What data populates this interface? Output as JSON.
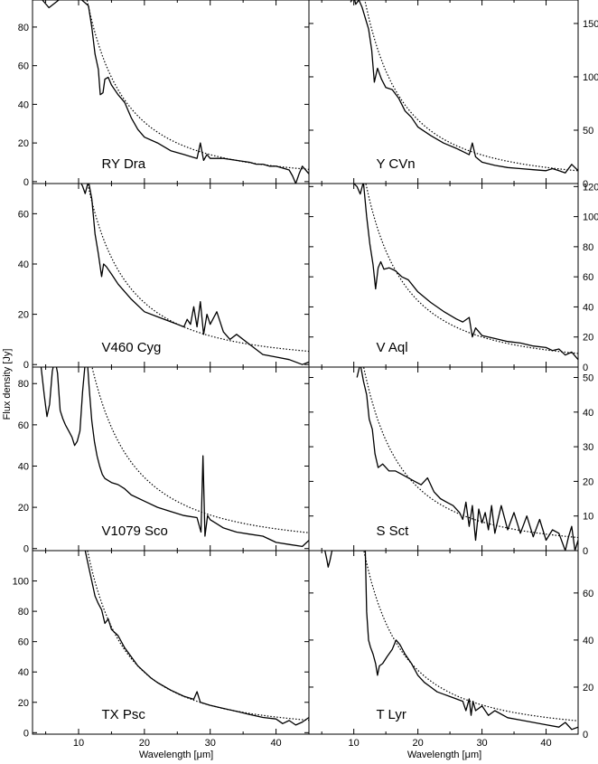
{
  "figure": {
    "xlabel": "Wavelength [μm]",
    "ylabel": "Flux density [Jy]"
  },
  "chart_data": [
    {
      "type": "line",
      "name": "RY Dra",
      "col": "left",
      "row": 0,
      "xlim": [
        3,
        45
      ],
      "ylim": [
        -1,
        94
      ],
      "xticks": [
        10,
        20,
        30,
        40
      ],
      "yticks": [
        0,
        20,
        40,
        60,
        80
      ],
      "ytick_side": "left",
      "model_A": 10600,
      "model_n": 1.95,
      "x": [
        4.5,
        5.5,
        7,
        9,
        10.5,
        11.5,
        12.0,
        12.5,
        13,
        13.3,
        13.7,
        14.0,
        14.5,
        15,
        16,
        17,
        18,
        19,
        20,
        22,
        24,
        26,
        27,
        28,
        28.5,
        29,
        29.5,
        30,
        32,
        34,
        36,
        37,
        38,
        39,
        40,
        41,
        42,
        42.5,
        43,
        43.5,
        44,
        45
      ],
      "y": [
        94,
        90,
        94,
        96,
        94,
        91,
        80,
        66,
        58,
        45,
        46,
        53,
        54,
        50,
        45,
        41,
        33,
        27,
        23,
        20,
        16,
        14,
        13,
        12,
        20,
        11,
        14,
        12,
        12,
        11,
        10,
        9,
        9,
        8,
        8,
        7,
        6,
        3,
        -1,
        4,
        8,
        4
      ]
    },
    {
      "type": "line",
      "name": "Y CVn",
      "col": "right",
      "row": 0,
      "xlim": [
        3,
        45
      ],
      "ylim": [
        0,
        172
      ],
      "xticks": [
        10,
        20,
        30,
        40
      ],
      "yticks": [
        0,
        50,
        100,
        150
      ],
      "ytick_side": "right",
      "model_A": 22500,
      "model_n": 1.98,
      "x": [
        9.5,
        10.0,
        10.3,
        10.8,
        11.3,
        11.8,
        12.3,
        12.8,
        13.2,
        13.7,
        14.3,
        15,
        16,
        17,
        18,
        19,
        20,
        22,
        24,
        26,
        27,
        28,
        28.5,
        29,
        30,
        32,
        34,
        36,
        38,
        40,
        41,
        42,
        43,
        44,
        45
      ],
      "y": [
        170,
        175,
        168,
        172,
        165,
        155,
        145,
        125,
        95,
        108,
        98,
        90,
        88,
        80,
        68,
        62,
        53,
        45,
        38,
        33,
        30,
        27,
        38,
        25,
        20,
        17,
        15,
        14,
        13,
        12,
        14,
        12,
        10,
        18,
        12
      ]
    },
    {
      "type": "line",
      "name": "V460 Cyg",
      "col": "left",
      "row": 1,
      "xlim": [
        3,
        45
      ],
      "ylim": [
        -1,
        72
      ],
      "xticks": [
        10,
        20,
        30,
        40
      ],
      "yticks": [
        0,
        20,
        40,
        60
      ],
      "ytick_side": "left",
      "model_A": 7300,
      "model_n": 1.9,
      "x": [
        10.2,
        10.6,
        11.0,
        11.5,
        12.0,
        12.5,
        13,
        13.5,
        13.8,
        14.2,
        15,
        16,
        17,
        18,
        20,
        22,
        24,
        25,
        26,
        26.5,
        27,
        27.5,
        28,
        28.5,
        29,
        29.5,
        30,
        31,
        32,
        33,
        34,
        36,
        38,
        40,
        42,
        44,
        45
      ],
      "y": [
        73,
        71,
        68,
        73,
        66,
        52,
        44,
        35,
        40,
        39,
        36,
        32,
        29,
        26,
        21,
        19,
        17,
        16,
        15,
        18,
        16,
        23,
        15,
        25,
        12,
        20,
        16,
        21,
        13,
        10,
        12,
        8,
        4,
        3,
        2,
        0,
        1
      ]
    },
    {
      "type": "line",
      "name": "V Aql",
      "col": "right",
      "row": 1,
      "xlim": [
        3,
        45
      ],
      "ylim": [
        0,
        122
      ],
      "xticks": [
        10,
        20,
        30,
        40
      ],
      "yticks": [
        0,
        20,
        40,
        60,
        80,
        100,
        120
      ],
      "ytick_side": "right",
      "model_A": 15200,
      "model_n": 1.95,
      "x": [
        10,
        10.5,
        11,
        11.5,
        12.0,
        12.5,
        13,
        13.4,
        13.8,
        14.2,
        14.7,
        15.5,
        16.5,
        17.5,
        18.5,
        20,
        22,
        24,
        26,
        27,
        28,
        28.5,
        29,
        30,
        32,
        34,
        36,
        38,
        40,
        41,
        42,
        43,
        44,
        45
      ],
      "y": [
        122,
        120,
        115,
        123,
        100,
        82,
        68,
        52,
        66,
        70,
        65,
        66,
        64,
        60,
        58,
        50,
        43,
        37,
        32,
        30,
        33,
        20,
        26,
        21,
        19,
        17,
        16,
        14,
        13,
        11,
        12,
        8,
        10,
        5
      ]
    },
    {
      "type": "line",
      "name": "V1079 Sco",
      "col": "left",
      "row": 2,
      "xlim": [
        3,
        45
      ],
      "ylim": [
        -1,
        88
      ],
      "xticks": [
        10,
        20,
        30,
        40
      ],
      "yticks": [
        0,
        20,
        40,
        60,
        80
      ],
      "ytick_side": "left",
      "model_A": 8800,
      "model_n": 1.85,
      "x": [
        4.3,
        4.8,
        5.2,
        5.6,
        6.0,
        6.4,
        6.8,
        7.2,
        7.6,
        8.0,
        8.5,
        9.0,
        9.4,
        9.8,
        10.2,
        10.6,
        11.0,
        11.3,
        11.6,
        12.0,
        12.4,
        12.8,
        13.2,
        13.6,
        14,
        15,
        16,
        17,
        18,
        20,
        22,
        24,
        26,
        28,
        28.6,
        28.9,
        29.2,
        29.6,
        30,
        31,
        32,
        34,
        36,
        38,
        40,
        42,
        44,
        45
      ],
      "y": [
        88,
        74,
        64,
        70,
        86,
        92,
        85,
        67,
        63,
        60,
        57,
        54,
        50,
        52,
        57,
        76,
        90,
        92,
        78,
        62,
        52,
        45,
        40,
        36,
        34,
        32,
        31,
        29,
        26,
        23,
        20,
        18,
        16,
        15,
        8,
        45,
        6,
        16,
        14,
        12,
        10,
        8,
        7,
        6,
        3,
        2,
        1,
        4
      ]
    },
    {
      "type": "line",
      "name": "S Sct",
      "col": "right",
      "row": 2,
      "xlim": [
        3,
        45
      ],
      "ylim": [
        0,
        53
      ],
      "xticks": [
        10,
        20,
        30,
        40
      ],
      "yticks": [
        0,
        10,
        20,
        30,
        40,
        50
      ],
      "ytick_side": "right",
      "model_A": 6100,
      "model_n": 1.94,
      "x": [
        10.5,
        11.0,
        11.5,
        12.0,
        12.4,
        12.9,
        13.3,
        13.8,
        14.5,
        15.5,
        16.5,
        17.5,
        18.5,
        19.5,
        20.5,
        21.5,
        22.5,
        23.5,
        24.5,
        25.5,
        26.5,
        27,
        27.5,
        28,
        28.5,
        29,
        29.5,
        30,
        30.5,
        31,
        31.5,
        32,
        32.5,
        33,
        34,
        35,
        36,
        37,
        38,
        39,
        40,
        41,
        42,
        43,
        43.5,
        44,
        44.5,
        45
      ],
      "y": [
        50,
        54,
        49,
        45,
        38,
        35,
        28,
        24,
        25,
        23,
        23,
        22,
        21,
        20,
        19,
        21,
        17,
        15,
        14,
        13,
        11,
        9,
        14,
        7,
        13,
        3,
        12,
        8,
        11,
        6,
        13,
        5,
        9,
        13,
        6,
        11,
        5,
        10,
        4,
        9,
        3,
        6,
        5,
        0,
        4,
        7,
        0,
        3
      ]
    },
    {
      "type": "line",
      "name": "TX Psc",
      "col": "left",
      "row": 3,
      "xlim": [
        3,
        45
      ],
      "ylim": [
        -1,
        120
      ],
      "xticks": [
        10,
        20,
        30,
        40
      ],
      "yticks": [
        0,
        20,
        40,
        60,
        80,
        100
      ],
      "ytick_side": "left",
      "model_A": 13700,
      "model_n": 1.95,
      "x": [
        11,
        11.5,
        12,
        12.5,
        13,
        13.5,
        14,
        14.5,
        15,
        16,
        17,
        18,
        19,
        20,
        21,
        22,
        24,
        26,
        27.5,
        28,
        28.5,
        30,
        32,
        34,
        36,
        38,
        40,
        41,
        42,
        43,
        44,
        45
      ],
      "y": [
        120,
        110,
        100,
        90,
        85,
        81,
        72,
        75,
        68,
        64,
        56,
        50,
        44,
        40,
        36,
        33,
        28,
        24,
        22,
        27,
        20,
        18,
        16,
        14,
        12,
        10,
        9,
        6,
        8,
        5,
        7,
        10
      ]
    },
    {
      "type": "line",
      "name": "T Lyr",
      "col": "right",
      "row": 3,
      "xlim": [
        3,
        45
      ],
      "ylim": [
        0,
        78
      ],
      "xticks": [
        10,
        20,
        30,
        40
      ],
      "yticks": [
        0,
        20,
        40,
        60
      ],
      "ytick_side": "right",
      "model_A": 8800,
      "model_n": 1.93,
      "x": [
        5.5,
        5.8,
        6.0,
        6.3,
        6.6,
        11.8,
        12.0,
        12.3,
        12.6,
        13.0,
        13.4,
        13.7,
        14.0,
        14.5,
        15.2,
        16,
        16.6,
        17.2,
        18,
        19,
        20,
        21,
        22,
        23,
        24,
        25,
        26,
        27,
        27.5,
        28,
        28.3,
        28.6,
        29,
        30,
        31,
        32,
        34,
        36,
        38,
        40,
        42,
        43,
        44,
        45
      ],
      "y": [
        78,
        74,
        71,
        74,
        78,
        78,
        52,
        40,
        37,
        34,
        30,
        25,
        29,
        30,
        33,
        36,
        40,
        38,
        34,
        30,
        25,
        22,
        20,
        18,
        17,
        16,
        15,
        14,
        10,
        15,
        8,
        14,
        10,
        12,
        8,
        10,
        7,
        6,
        5,
        4,
        3,
        5,
        2,
        3
      ]
    }
  ]
}
